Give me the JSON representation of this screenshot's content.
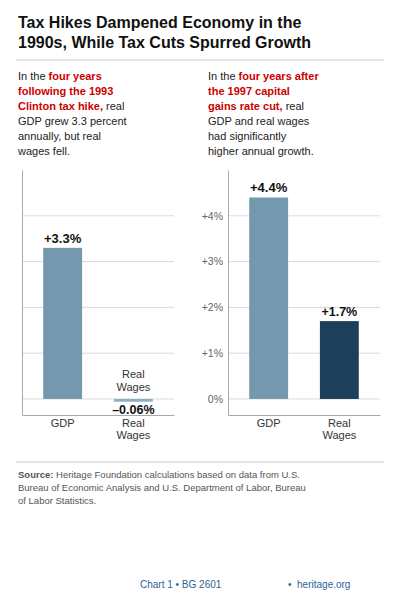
{
  "title": "Tax Hikes Dampened Economy in the\n1990s, While Tax Cuts Spurred Growth",
  "source": [
    "Source:",
    " Heritage Foundation calculations based on data from U.S.\nBureau of Economic Analysis and U.S. Department of Labor, Bureau\nof Labor Statistics."
  ],
  "footer": {
    "texts": [
      "Chart 1 • BG 2601",
      "•  heritage.org"
    ],
    "color": "#2a6496"
  },
  "chart_data": [
    {
      "type": "bar",
      "subtitle": [
        "In the ",
        {
          "text": "four years\nfollowing the 1993\nClinton tax hike,",
          "color": "#cc0000"
        },
        " real\nGDP grew 3.3 percent\nannually, but real\nwages fell."
      ],
      "categories": [
        "GDP",
        "Real\nWages"
      ],
      "values": [
        3.3,
        -0.06
      ],
      "value_labels": [
        "+3.3%",
        "–0.06%"
      ],
      "colors": [
        "#7499ae",
        "#89afc2"
      ],
      "ylim": [
        -0.35,
        5.0
      ],
      "yticks": [
        0,
        1,
        2,
        3,
        4
      ],
      "grid": true,
      "data_labels": true,
      "tick_labels": "x",
      "annotations": [
        "Real\nWages"
      ]
    },
    {
      "type": "bar",
      "subtitle": [
        "In the ",
        {
          "text": "four years after\nthe 1997 capital\ngains rate cut,",
          "color": "#cc0000"
        },
        " real\nGDP and real wages\nhad significantly\nhigher annual growth."
      ],
      "categories": [
        "GDP",
        "Real\nWages"
      ],
      "values": [
        4.4,
        1.7
      ],
      "value_labels": [
        "+4.4%",
        "+1.7%"
      ],
      "colors": [
        "#7499ae",
        "#1e3f5a"
      ],
      "ylim": [
        -0.35,
        5.0
      ],
      "yticks": [
        {
          "value": 0,
          "label": "0%"
        },
        {
          "value": 1,
          "label": "+1%"
        },
        {
          "value": 2,
          "label": "+2%"
        },
        {
          "value": 3,
          "label": "+3%"
        },
        {
          "value": 4,
          "label": "+4%"
        }
      ],
      "grid": true,
      "data_labels": true
    }
  ]
}
